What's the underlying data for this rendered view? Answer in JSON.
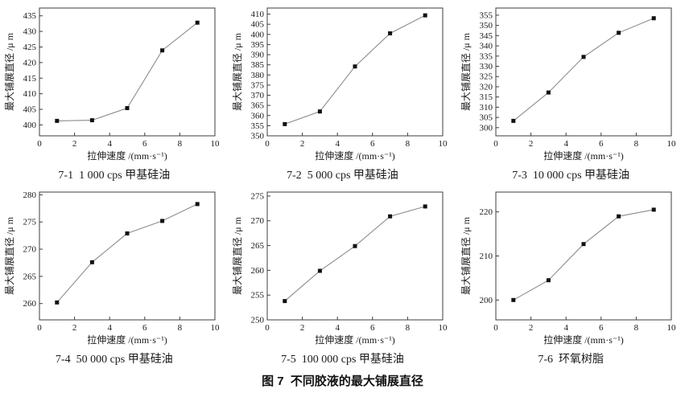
{
  "figure": {
    "caption": "图 7  不同胶液的最大铺展直径"
  },
  "chart_style": {
    "line_color": "#8c8c8c",
    "marker_color": "#111111",
    "axis_color": "#3c3c3c",
    "text_color": "#1a1a1a",
    "marker": "square",
    "grid": false,
    "legend": "none"
  },
  "chart_data": [
    {
      "id": "7-1",
      "type": "line",
      "caption": "7-1  1 000 cps 甲基硅油",
      "xlabel": "拉伸速度 /(mm·s⁻¹)",
      "ylabel": "最大铺展直径 /μ m",
      "x": [
        1,
        3,
        5,
        7,
        9
      ],
      "y": [
        401.3,
        401.5,
        405.4,
        423.9,
        432.8
      ],
      "xlim": [
        0,
        10
      ],
      "ylim": [
        396.5,
        437.5
      ],
      "xticks": [
        0,
        2,
        4,
        6,
        8,
        10
      ],
      "yticks": [
        400,
        405,
        410,
        415,
        420,
        425,
        430,
        435
      ]
    },
    {
      "id": "7-2",
      "type": "line",
      "caption": "7-2  5 000 cps 甲基硅油",
      "xlabel": "拉伸速度 /(mm·s⁻¹)",
      "ylabel": "最大铺展直径 /μ m",
      "x": [
        1,
        3,
        5,
        7,
        9
      ],
      "y": [
        355.8,
        362.0,
        384.2,
        400.5,
        409.4
      ],
      "xlim": [
        0,
        10
      ],
      "ylim": [
        350,
        413
      ],
      "xticks": [
        0,
        2,
        4,
        6,
        8,
        10
      ],
      "yticks": [
        350,
        355,
        360,
        365,
        370,
        375,
        380,
        385,
        390,
        395,
        400,
        405,
        410
      ]
    },
    {
      "id": "7-3",
      "type": "line",
      "caption": "7-3  10 000 cps 甲基硅油",
      "xlabel": "拉伸速度 /(mm·s⁻¹)",
      "ylabel": "最大铺展直径 /μ m",
      "x": [
        1,
        3,
        5,
        7,
        9
      ],
      "y": [
        303.3,
        317.2,
        334.6,
        346.4,
        353.5
      ],
      "xlim": [
        0,
        10
      ],
      "ylim": [
        296,
        358.5
      ],
      "xticks": [
        0,
        2,
        4,
        6,
        8,
        10
      ],
      "yticks": [
        300,
        305,
        310,
        315,
        320,
        325,
        330,
        335,
        340,
        345,
        350,
        355
      ]
    },
    {
      "id": "7-4",
      "type": "line",
      "caption": "7-4  50 000 cps 甲基硅油",
      "xlabel": "拉伸速度 /(mm·s⁻¹)",
      "ylabel": "最大铺展直径 /μ m",
      "x": [
        1,
        3,
        5,
        7,
        9
      ],
      "y": [
        260.2,
        267.6,
        272.9,
        275.2,
        278.3
      ],
      "xlim": [
        0,
        10
      ],
      "ylim": [
        257,
        280.5
      ],
      "xticks": [
        0,
        2,
        4,
        6,
        8,
        10
      ],
      "yticks": [
        260,
        265,
        270,
        275,
        280
      ]
    },
    {
      "id": "7-5",
      "type": "line",
      "caption": "7-5  100 000 cps 甲基硅油",
      "xlabel": "拉伸速度 /(mm·s⁻¹)",
      "ylabel": "最大铺展直径 /μ m",
      "x": [
        1,
        3,
        5,
        7,
        9
      ],
      "y": [
        253.8,
        259.9,
        264.9,
        270.9,
        272.9
      ],
      "xlim": [
        0,
        10
      ],
      "ylim": [
        250,
        275.8
      ],
      "xticks": [
        0,
        2,
        4,
        6,
        8,
        10
      ],
      "yticks": [
        250,
        255,
        260,
        265,
        270,
        275
      ]
    },
    {
      "id": "7-6",
      "type": "line",
      "caption": "7-6  环氧树脂",
      "xlabel": "拉伸速度 /(mm·s⁻¹)",
      "ylabel": "最大铺展直径 /μ m",
      "x": [
        1,
        3,
        5,
        7,
        9
      ],
      "y": [
        200.0,
        204.5,
        212.7,
        219.0,
        220.5
      ],
      "xlim": [
        0,
        10
      ],
      "ylim": [
        195.5,
        224.5
      ],
      "xticks": [
        0,
        2,
        4,
        6,
        8,
        10
      ],
      "yticks": [
        200,
        210,
        220
      ]
    }
  ]
}
